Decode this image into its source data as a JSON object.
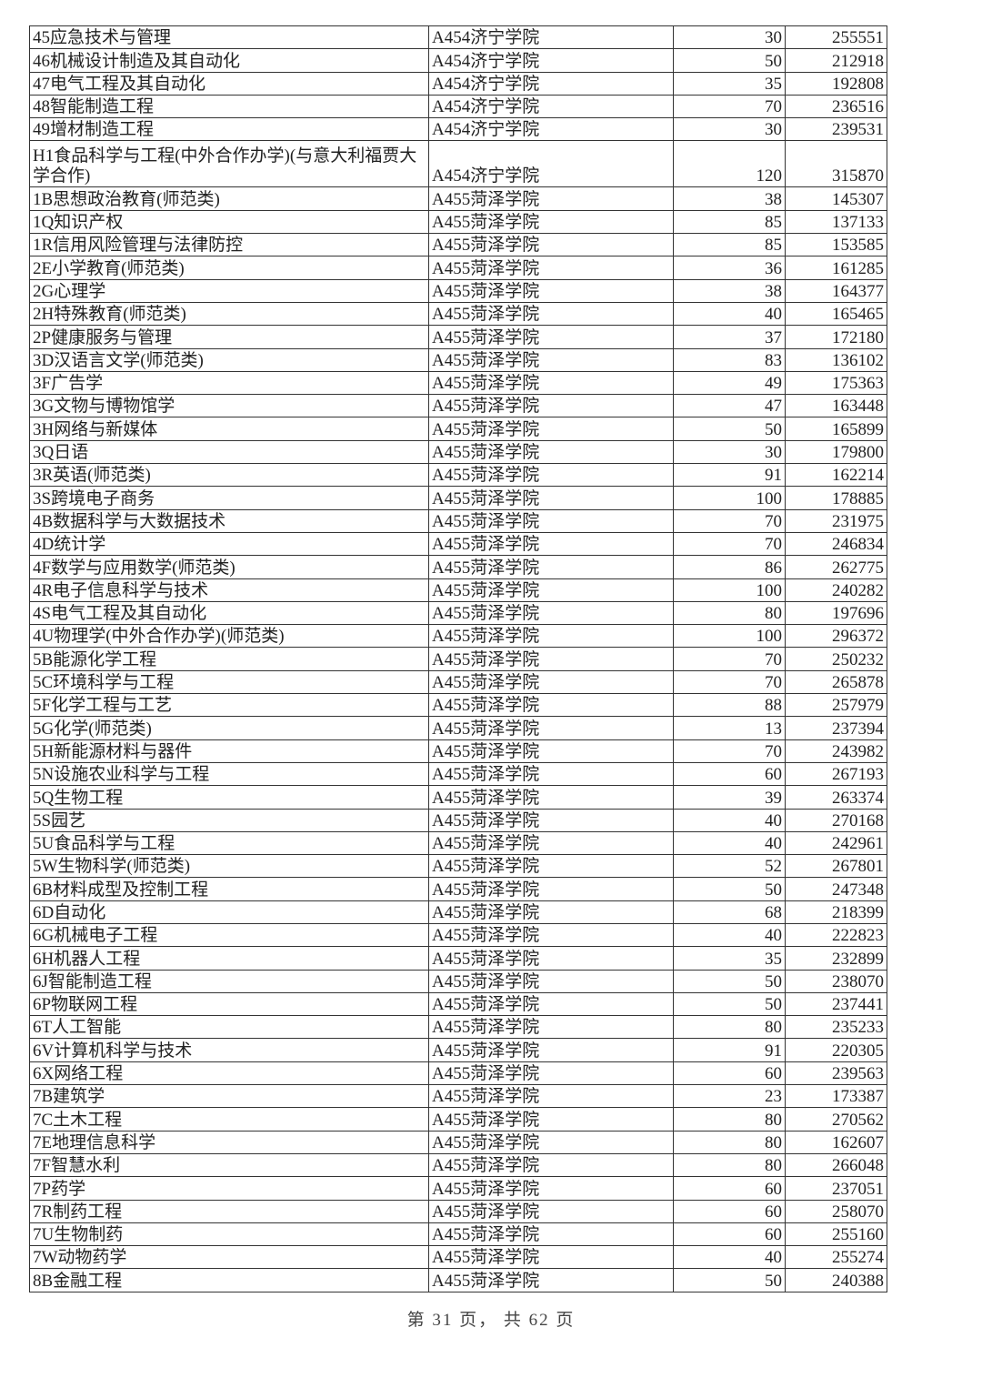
{
  "rows": [
    [
      "45应急技术与管理",
      "A454济宁学院",
      "30",
      "255551"
    ],
    [
      "46机械设计制造及其自动化",
      "A454济宁学院",
      "50",
      "212918"
    ],
    [
      "47电气工程及其自动化",
      "A454济宁学院",
      "35",
      "192808"
    ],
    [
      "48智能制造工程",
      "A454济宁学院",
      "70",
      "236516"
    ],
    [
      "49增材制造工程",
      "A454济宁学院",
      "30",
      "239531"
    ],
    [
      "H1食品科学与工程(中外合作办学)(与意大利福贾大学合作)",
      "A454济宁学院",
      "120",
      "315870"
    ],
    [
      "1B思想政治教育(师范类)",
      "A455菏泽学院",
      "38",
      "145307"
    ],
    [
      "1Q知识产权",
      "A455菏泽学院",
      "85",
      "137133"
    ],
    [
      "1R信用风险管理与法律防控",
      "A455菏泽学院",
      "85",
      "153585"
    ],
    [
      "2E小学教育(师范类)",
      "A455菏泽学院",
      "36",
      "161285"
    ],
    [
      "2G心理学",
      "A455菏泽学院",
      "38",
      "164377"
    ],
    [
      "2H特殊教育(师范类)",
      "A455菏泽学院",
      "40",
      "165465"
    ],
    [
      "2P健康服务与管理",
      "A455菏泽学院",
      "37",
      "172180"
    ],
    [
      "3D汉语言文学(师范类)",
      "A455菏泽学院",
      "83",
      "136102"
    ],
    [
      "3F广告学",
      "A455菏泽学院",
      "49",
      "175363"
    ],
    [
      "3G文物与博物馆学",
      "A455菏泽学院",
      "47",
      "163448"
    ],
    [
      "3H网络与新媒体",
      "A455菏泽学院",
      "50",
      "165899"
    ],
    [
      "3Q日语",
      "A455菏泽学院",
      "30",
      "179800"
    ],
    [
      "3R英语(师范类)",
      "A455菏泽学院",
      "91",
      "162214"
    ],
    [
      "3S跨境电子商务",
      "A455菏泽学院",
      "100",
      "178885"
    ],
    [
      "4B数据科学与大数据技术",
      "A455菏泽学院",
      "70",
      "231975"
    ],
    [
      "4D统计学",
      "A455菏泽学院",
      "70",
      "246834"
    ],
    [
      "4F数学与应用数学(师范类)",
      "A455菏泽学院",
      "86",
      "262775"
    ],
    [
      "4R电子信息科学与技术",
      "A455菏泽学院",
      "100",
      "240282"
    ],
    [
      "4S电气工程及其自动化",
      "A455菏泽学院",
      "80",
      "197696"
    ],
    [
      "4U物理学(中外合作办学)(师范类)",
      "A455菏泽学院",
      "100",
      "296372"
    ],
    [
      "5B能源化学工程",
      "A455菏泽学院",
      "70",
      "250232"
    ],
    [
      "5C环境科学与工程",
      "A455菏泽学院",
      "70",
      "265878"
    ],
    [
      "5F化学工程与工艺",
      "A455菏泽学院",
      "88",
      "257979"
    ],
    [
      "5G化学(师范类)",
      "A455菏泽学院",
      "13",
      "237394"
    ],
    [
      "5H新能源材料与器件",
      "A455菏泽学院",
      "70",
      "243982"
    ],
    [
      "5N设施农业科学与工程",
      "A455菏泽学院",
      "60",
      "267193"
    ],
    [
      "5Q生物工程",
      "A455菏泽学院",
      "39",
      "263374"
    ],
    [
      "5S园艺",
      "A455菏泽学院",
      "40",
      "270168"
    ],
    [
      "5U食品科学与工程",
      "A455菏泽学院",
      "40",
      "242961"
    ],
    [
      "5W生物科学(师范类)",
      "A455菏泽学院",
      "52",
      "267801"
    ],
    [
      "6B材料成型及控制工程",
      "A455菏泽学院",
      "50",
      "247348"
    ],
    [
      "6D自动化",
      "A455菏泽学院",
      "68",
      "218399"
    ],
    [
      "6G机械电子工程",
      "A455菏泽学院",
      "40",
      "222823"
    ],
    [
      "6H机器人工程",
      "A455菏泽学院",
      "35",
      "232899"
    ],
    [
      "6J智能制造工程",
      "A455菏泽学院",
      "50",
      "238070"
    ],
    [
      "6P物联网工程",
      "A455菏泽学院",
      "50",
      "237441"
    ],
    [
      "6T人工智能",
      "A455菏泽学院",
      "80",
      "235233"
    ],
    [
      "6V计算机科学与技术",
      "A455菏泽学院",
      "91",
      "220305"
    ],
    [
      "6X网络工程",
      "A455菏泽学院",
      "60",
      "239563"
    ],
    [
      "7B建筑学",
      "A455菏泽学院",
      "23",
      "173387"
    ],
    [
      "7C土木工程",
      "A455菏泽学院",
      "80",
      "270562"
    ],
    [
      "7E地理信息科学",
      "A455菏泽学院",
      "80",
      "162607"
    ],
    [
      "7F智慧水利",
      "A455菏泽学院",
      "80",
      "266048"
    ],
    [
      "7P药学",
      "A455菏泽学院",
      "60",
      "237051"
    ],
    [
      "7R制药工程",
      "A455菏泽学院",
      "60",
      "258070"
    ],
    [
      "7U生物制药",
      "A455菏泽学院",
      "60",
      "255160"
    ],
    [
      "7W动物药学",
      "A455菏泽学院",
      "40",
      "255274"
    ],
    [
      "8B金融工程",
      "A455菏泽学院",
      "50",
      "240388"
    ]
  ],
  "footer": "第 31 页， 共 62 页"
}
